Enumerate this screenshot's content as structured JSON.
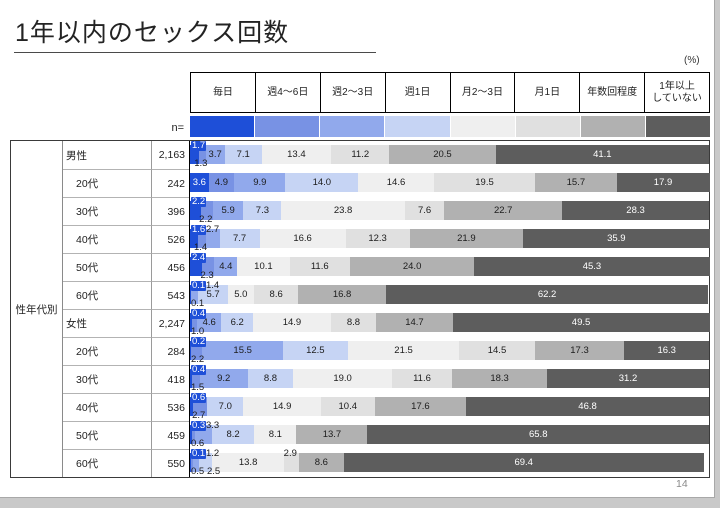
{
  "slide": {
    "title": "1年以内のセックス回数",
    "unit_label": "(%)",
    "n_label": "n=",
    "row_header": "性年代別",
    "page_number": "14"
  },
  "legend": {
    "display_labels": [
      "毎日",
      "週4～6日",
      "週2～3日",
      "週1日",
      "月2～3日",
      "月1日",
      "年数回程度",
      "1年以上\nしていない"
    ]
  },
  "chart_data": {
    "type": "bar",
    "stacked": true,
    "orientation": "horizontal",
    "title": "1年以内のセックス回数",
    "unit": "%",
    "xlim": [
      0,
      100
    ],
    "segments": [
      "毎日",
      "週4～6日",
      "週2～3日",
      "週1日",
      "月2～3日",
      "月1日",
      "年数回程度",
      "1年以上していない"
    ],
    "segment_colors": [
      "#1e4fd8",
      "#7892e4",
      "#91a9ec",
      "#c6d4f4",
      "#efefef",
      "#e0e0e0",
      "#b1b1b1",
      "#5d5d5d"
    ],
    "group_header": "性年代別",
    "rows": [
      {
        "label": "男性",
        "parent": true,
        "n": "2,163",
        "values": [
          1.7,
          1.3,
          3.7,
          7.1,
          13.4,
          11.2,
          20.5,
          41.1
        ]
      },
      {
        "label": "20代",
        "parent": false,
        "n": "242",
        "values": [
          3.6,
          4.9,
          9.9,
          14.0,
          14.6,
          19.5,
          15.7,
          17.9
        ]
      },
      {
        "label": "30代",
        "parent": false,
        "n": "396",
        "values": [
          2.2,
          2.2,
          5.9,
          7.3,
          23.8,
          7.6,
          22.7,
          28.3
        ]
      },
      {
        "label": "40代",
        "parent": false,
        "n": "526",
        "values": [
          1.6,
          1.4,
          2.7,
          7.7,
          16.6,
          12.3,
          21.9,
          35.9
        ]
      },
      {
        "label": "50代",
        "parent": false,
        "n": "456",
        "values": [
          2.4,
          2.3,
          4.4,
          0,
          10.1,
          11.6,
          24.0,
          45.3
        ]
      },
      {
        "label": "60代",
        "parent": false,
        "n": "543",
        "values": [
          0.1,
          0.1,
          1.4,
          5.7,
          5.0,
          8.6,
          16.8,
          62.2
        ]
      },
      {
        "label": "女性",
        "parent": true,
        "n": "2,247",
        "values": [
          0.4,
          1.0,
          4.6,
          6.2,
          14.9,
          8.8,
          14.7,
          49.5
        ]
      },
      {
        "label": "20代",
        "parent": false,
        "n": "284",
        "values": [
          0.2,
          2.2,
          15.5,
          12.5,
          21.5,
          14.5,
          17.3,
          16.3
        ]
      },
      {
        "label": "30代",
        "parent": false,
        "n": "418",
        "values": [
          0.4,
          1.5,
          9.2,
          8.8,
          19.0,
          11.6,
          18.3,
          31.2
        ]
      },
      {
        "label": "40代",
        "parent": false,
        "n": "536",
        "values": [
          0.6,
          2.7,
          0,
          7.0,
          14.9,
          10.4,
          17.6,
          46.8
        ]
      },
      {
        "label": "50代",
        "parent": false,
        "n": "459",
        "values": [
          0.3,
          0.6,
          3.3,
          8.2,
          8.1,
          0,
          13.7,
          65.8
        ]
      },
      {
        "label": "60代",
        "parent": false,
        "n": "550",
        "values": [
          0.1,
          0.5,
          1.2,
          2.5,
          13.8,
          2.9,
          8.6,
          69.4
        ]
      }
    ]
  }
}
